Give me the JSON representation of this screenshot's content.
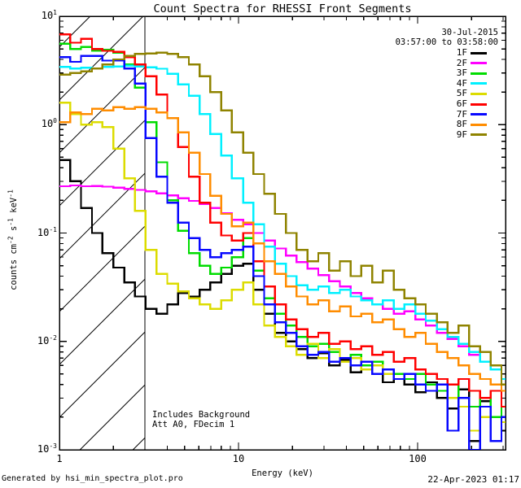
{
  "header": {
    "title": "Count Spectra for RHESSI Front Segments",
    "date": "30-Jul-2015",
    "time_range": "03:57:00 to 03:58:00"
  },
  "legend": {
    "items": [
      {
        "label": "1F",
        "color": "#000000"
      },
      {
        "label": "2F",
        "color": "#FF00FF"
      },
      {
        "label": "3F",
        "color": "#00DC00"
      },
      {
        "label": "4F",
        "color": "#00F0FF"
      },
      {
        "label": "5F",
        "color": "#DCDC00"
      },
      {
        "label": "6F",
        "color": "#FF0000"
      },
      {
        "label": "7F",
        "color": "#0808FF"
      },
      {
        "label": "8F",
        "color": "#FF8C00"
      },
      {
        "label": "9F",
        "color": "#8F8300"
      }
    ]
  },
  "annotations": {
    "line1": "Includes Background",
    "line2": "Att A0, FDecim 1"
  },
  "axes": {
    "x_label": "Energy (keV)",
    "y_label_parts": [
      {
        "text": "counts cm"
      },
      {
        "sup": "-2"
      },
      {
        "text": " s"
      },
      {
        "sup": "-1"
      },
      {
        "text": " keV"
      },
      {
        "sup": "-1"
      }
    ],
    "x_ticks": [
      {
        "label": "1",
        "value": 1
      },
      {
        "label": "10",
        "value": 10
      },
      {
        "label": "100",
        "value": 100
      }
    ],
    "y_ticks": [
      {
        "base": "10",
        "exp": "1",
        "value": 10
      },
      {
        "base": "10",
        "exp": "0",
        "value": 1
      },
      {
        "base": "10",
        "exp": "-1",
        "value": 0.1
      },
      {
        "base": "10",
        "exp": "-2",
        "value": 0.01
      },
      {
        "base": "10",
        "exp": "-3",
        "value": 0.001
      }
    ]
  },
  "footer": {
    "left": "Generated by hsi_min_spectra_plot.pro",
    "right": "22-Apr-2023 01:17"
  },
  "chart_data": {
    "type": "line",
    "style": "stepped-histogram",
    "title": "Count Spectra for RHESSI Front Segments",
    "xlabel": "Energy (keV)",
    "ylabel": "counts cm-2 s-1 keV-1",
    "x_scale": "log",
    "y_scale": "log",
    "xlim": [
      1,
      311
    ],
    "ylim": [
      0.001,
      10
    ],
    "grid": false,
    "legend_position": "top-right-inside",
    "excluded_hatched_band_kev": [
      1,
      3
    ],
    "bin_edges_kev": [
      1.0,
      1.15,
      1.32,
      1.52,
      1.74,
      2.0,
      2.3,
      2.64,
      3.03,
      3.48,
      4.0,
      4.6,
      5.28,
      6.06,
      6.96,
      8.0,
      9.19,
      10.6,
      12.1,
      13.9,
      16.0,
      18.4,
      21.1,
      24.3,
      27.9,
      32.0,
      36.8,
      42.2,
      48.5,
      55.7,
      64.0,
      73.5,
      84.4,
      97.0,
      111,
      128,
      147,
      169,
      194,
      223,
      256,
      294,
      311
    ],
    "series": [
      {
        "name": "1F",
        "color": "#000000",
        "values": [
          0.47,
          0.3,
          0.17,
          0.1,
          0.065,
          0.048,
          0.035,
          0.026,
          0.02,
          0.018,
          0.022,
          0.028,
          0.026,
          0.03,
          0.035,
          0.042,
          0.05,
          0.052,
          0.03,
          0.018,
          0.012,
          0.01,
          0.0085,
          0.007,
          0.0078,
          0.006,
          0.0068,
          0.0052,
          0.006,
          0.005,
          0.0042,
          0.005,
          0.004,
          0.0034,
          0.0042,
          0.003,
          0.0024,
          0.0036,
          0.0012,
          0.0028,
          0.002,
          0.0015
        ]
      },
      {
        "name": "2F",
        "color": "#FF00FF",
        "values": [
          0.27,
          0.275,
          0.27,
          0.272,
          0.268,
          0.262,
          0.256,
          0.25,
          0.242,
          0.232,
          0.222,
          0.21,
          0.198,
          0.185,
          0.17,
          0.152,
          0.132,
          0.12,
          0.1,
          0.085,
          0.072,
          0.062,
          0.054,
          0.047,
          0.041,
          0.036,
          0.032,
          0.028,
          0.025,
          0.022,
          0.02,
          0.018,
          0.019,
          0.016,
          0.014,
          0.012,
          0.0105,
          0.009,
          0.0075,
          0.0065,
          0.0055,
          0.0045
        ]
      },
      {
        "name": "3F",
        "color": "#00DC00",
        "values": [
          5.6,
          5.0,
          5.2,
          4.8,
          4.9,
          4.6,
          3.6,
          2.2,
          1.05,
          0.45,
          0.2,
          0.105,
          0.065,
          0.05,
          0.042,
          0.048,
          0.06,
          0.09,
          0.045,
          0.025,
          0.018,
          0.014,
          0.011,
          0.009,
          0.0095,
          0.008,
          0.007,
          0.0075,
          0.006,
          0.0065,
          0.0055,
          0.005,
          0.0045,
          0.005,
          0.004,
          0.0035,
          0.004,
          0.003,
          0.0025,
          0.003,
          0.002,
          0.0025
        ]
      },
      {
        "name": "4F",
        "color": "#00F0FF",
        "values": [
          3.4,
          3.3,
          3.35,
          3.3,
          3.4,
          3.45,
          3.5,
          3.45,
          3.38,
          3.28,
          2.95,
          2.35,
          1.85,
          1.25,
          0.82,
          0.52,
          0.32,
          0.19,
          0.12,
          0.075,
          0.052,
          0.04,
          0.033,
          0.03,
          0.032,
          0.028,
          0.03,
          0.026,
          0.024,
          0.022,
          0.024,
          0.02,
          0.022,
          0.018,
          0.0155,
          0.013,
          0.011,
          0.0095,
          0.008,
          0.0065,
          0.0055,
          0.0045
        ]
      },
      {
        "name": "5F",
        "color": "#DCDC00",
        "values": [
          1.6,
          1.25,
          1.0,
          1.05,
          0.95,
          0.6,
          0.32,
          0.16,
          0.07,
          0.042,
          0.034,
          0.029,
          0.025,
          0.022,
          0.02,
          0.024,
          0.03,
          0.035,
          0.022,
          0.014,
          0.011,
          0.009,
          0.0075,
          0.0095,
          0.007,
          0.0085,
          0.0065,
          0.007,
          0.0055,
          0.006,
          0.005,
          0.0045,
          0.005,
          0.004,
          0.0035,
          0.004,
          0.003,
          0.0025,
          0.0015,
          0.002,
          0.0012,
          0.0018
        ]
      },
      {
        "name": "6F",
        "color": "#FF0000",
        "values": [
          6.8,
          5.7,
          6.2,
          5.0,
          4.8,
          4.7,
          4.2,
          3.6,
          2.8,
          1.9,
          1.15,
          0.62,
          0.33,
          0.19,
          0.125,
          0.095,
          0.085,
          0.1,
          0.055,
          0.032,
          0.022,
          0.016,
          0.013,
          0.011,
          0.012,
          0.0095,
          0.01,
          0.0085,
          0.009,
          0.0075,
          0.008,
          0.0065,
          0.007,
          0.0055,
          0.005,
          0.0045,
          0.004,
          0.0045,
          0.0035,
          0.003,
          0.0035,
          0.0025
        ]
      },
      {
        "name": "7F",
        "color": "#0808FF",
        "values": [
          4.2,
          3.8,
          4.3,
          4.3,
          3.9,
          3.9,
          3.3,
          2.4,
          0.75,
          0.33,
          0.19,
          0.125,
          0.09,
          0.07,
          0.06,
          0.065,
          0.07,
          0.075,
          0.04,
          0.022,
          0.015,
          0.012,
          0.009,
          0.0075,
          0.008,
          0.0065,
          0.007,
          0.006,
          0.0065,
          0.005,
          0.0055,
          0.0045,
          0.005,
          0.004,
          0.0035,
          0.004,
          0.0015,
          0.003,
          0.001,
          0.0025,
          0.0012,
          0.002
        ]
      },
      {
        "name": "8F",
        "color": "#FF8C00",
        "values": [
          1.05,
          1.3,
          1.25,
          1.4,
          1.35,
          1.45,
          1.4,
          1.45,
          1.4,
          1.3,
          1.15,
          0.85,
          0.55,
          0.35,
          0.22,
          0.15,
          0.115,
          0.125,
          0.08,
          0.055,
          0.042,
          0.032,
          0.026,
          0.022,
          0.024,
          0.019,
          0.021,
          0.017,
          0.018,
          0.015,
          0.016,
          0.013,
          0.011,
          0.012,
          0.0095,
          0.008,
          0.007,
          0.006,
          0.005,
          0.0045,
          0.004,
          0.0035
        ]
      },
      {
        "name": "9F",
        "color": "#8F8300",
        "values": [
          2.9,
          3.0,
          3.1,
          3.3,
          3.6,
          4.0,
          4.3,
          4.5,
          4.55,
          4.6,
          4.5,
          4.2,
          3.6,
          2.8,
          2.0,
          1.35,
          0.85,
          0.55,
          0.35,
          0.23,
          0.15,
          0.1,
          0.07,
          0.055,
          0.065,
          0.045,
          0.055,
          0.04,
          0.05,
          0.035,
          0.045,
          0.03,
          0.025,
          0.022,
          0.018,
          0.015,
          0.012,
          0.014,
          0.009,
          0.008,
          0.006,
          0.004
        ]
      }
    ]
  }
}
